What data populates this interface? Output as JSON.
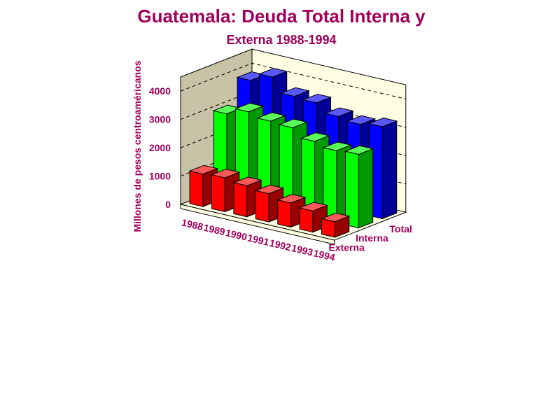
{
  "chart_data": {
    "type": "bar3d",
    "title": [
      "Guatemala: Deuda Total Interna  y",
      "Externa 1988-1994"
    ],
    "y_label": "Millones de pesos centroaméricanos",
    "categories": [
      "1988",
      "1989",
      "1990",
      "1991",
      "1992",
      "1993",
      "1994"
    ],
    "series": [
      {
        "name": "Total",
        "color": "#0000ff",
        "values": [
          3800,
          4100,
          3600,
          3550,
          3250,
          3150,
          3250
        ]
      },
      {
        "name": "Interna",
        "color": "#00ff00",
        "values": [
          2950,
          3200,
          3050,
          3000,
          2700,
          2550,
          2600
        ]
      },
      {
        "name": "Externa",
        "color": "#ff0000",
        "values": [
          1150,
          1200,
          1100,
          1000,
          850,
          750,
          550
        ]
      }
    ],
    "ylim": [
      0,
      4500
    ],
    "yticks": [
      0,
      1000,
      2000,
      3000,
      4000
    ],
    "grid": true
  }
}
